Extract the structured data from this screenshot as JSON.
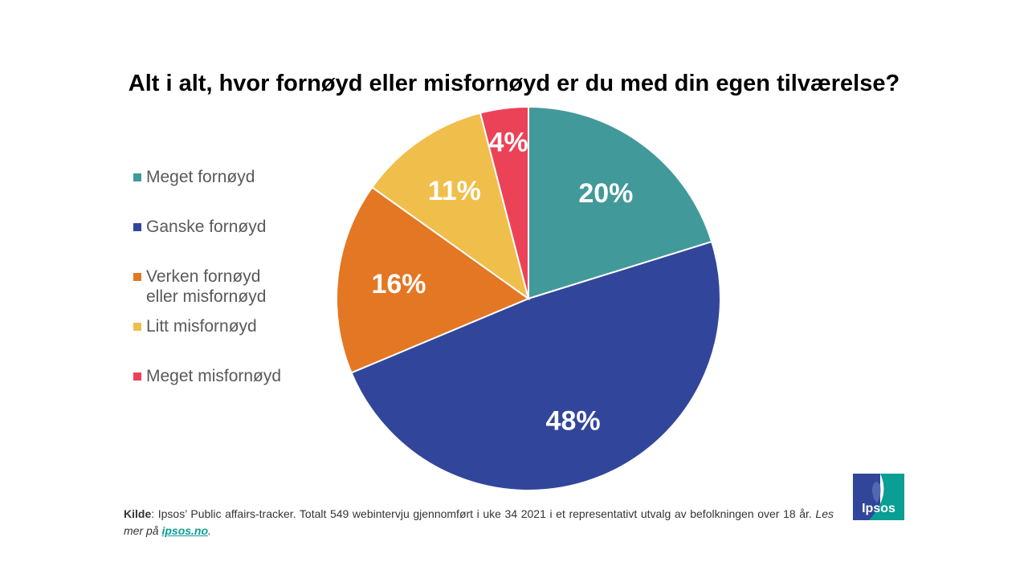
{
  "chart_data": {
    "type": "pie",
    "title": "Alt i alt, hvor fornøyd eller misfornøyd er du med din egen tilværelse?",
    "unit": "%",
    "slices": [
      {
        "label": "Meget fornøyd",
        "value": 20,
        "display": "20%",
        "color": "#42999A"
      },
      {
        "label": "Ganske fornøyd",
        "value": 48,
        "display": "48%",
        "color": "#31469B"
      },
      {
        "label": "Verken fornøyd\neller misfornøyd",
        "value": 16,
        "display": "16%",
        "color": "#E47723"
      },
      {
        "label": "Litt misfornøyd",
        "value": 11,
        "display": "11%",
        "color": "#F0BE4B"
      },
      {
        "label": "Meget misfornøyd",
        "value": 4,
        "display": "4%",
        "color": "#EC4258"
      }
    ],
    "legend_position": "left"
  },
  "source": {
    "label": "Kilde",
    "text": ": Ipsos’ Public affairs-tracker. Totalt 549 webintervju gjennomført  i uke 34 2021 i et representativt utvalg av befolkningen over 18 år. ",
    "more_text": "Les mer på ",
    "link_text": "ipsos.no",
    "end": "."
  },
  "logo": {
    "text": "Ipsos",
    "colors": {
      "left": "#31469B",
      "right": "#0A9E95"
    }
  }
}
